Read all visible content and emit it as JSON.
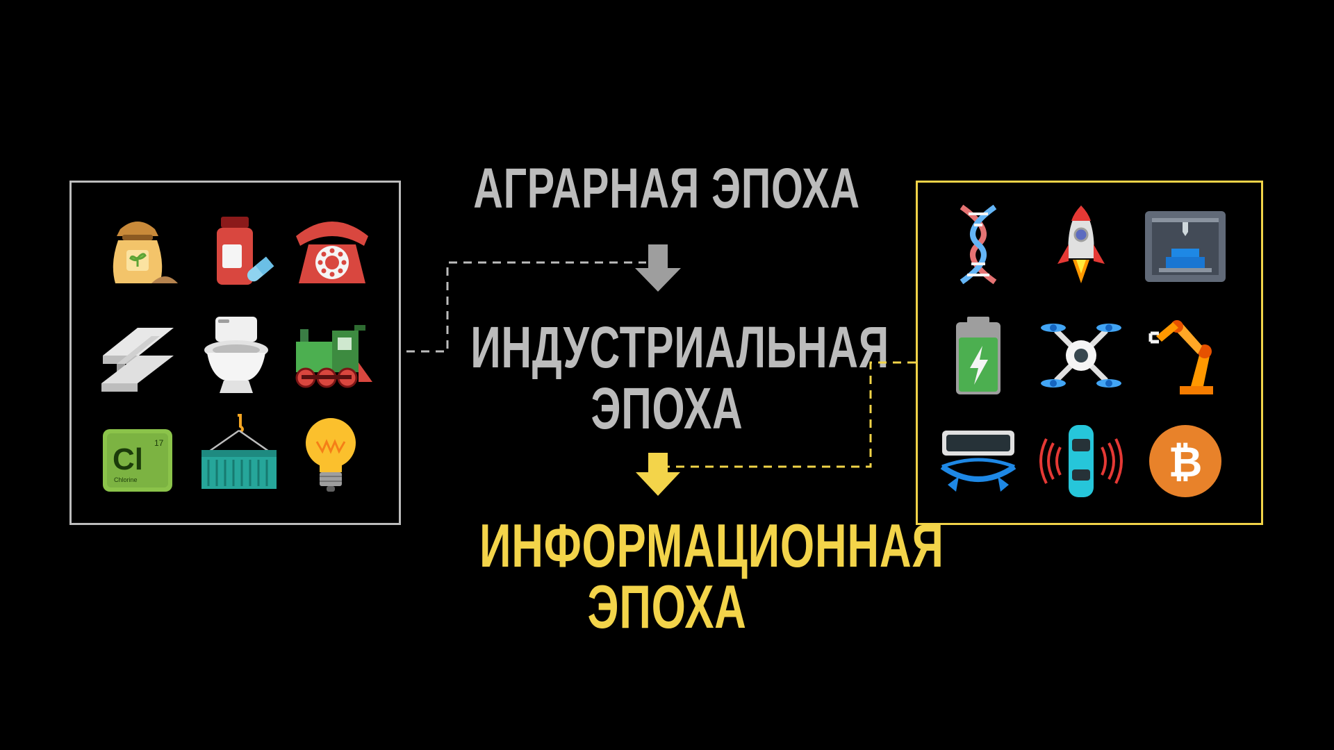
{
  "eras": {
    "agrarian": "АГРАРНАЯ ЭПОХА",
    "industrial_line1": "ИНДУСТРИАЛЬНАЯ",
    "industrial_line2": "ЭПОХА",
    "information_line1": "ИНФОРМАЦИОННАЯ",
    "information_line2": "ЭПОХА"
  },
  "colors": {
    "background": "#000000",
    "industrial_gray": "#bcbcbc",
    "information_yellow": "#f3d44a",
    "left_frame": "#bdbdbd",
    "right_frame": "#f1d348"
  },
  "industrial_icons": [
    "fertilizer-sack-icon",
    "medicine-bottle-icon",
    "rotary-telephone-icon",
    "steel-beam-icon",
    "toilet-icon",
    "steam-locomotive-icon",
    "chlorine-element-icon",
    "shipping-container-icon",
    "light-bulb-icon"
  ],
  "chlorine_tile": {
    "symbol": "Cl",
    "number": "17",
    "name": "Chlorine"
  },
  "information_icons": [
    "dna-icon",
    "rocket-icon",
    "3d-printer-icon",
    "battery-icon",
    "drone-icon",
    "robotic-arm-icon",
    "vr-headset-icon",
    "autonomous-car-icon",
    "bitcoin-icon"
  ]
}
